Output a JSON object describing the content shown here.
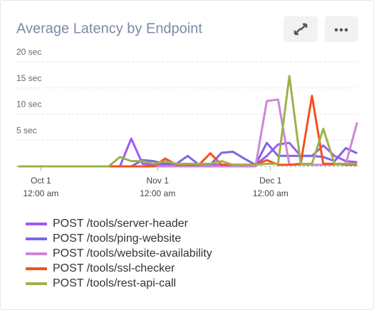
{
  "chart_data": {
    "type": "line",
    "title": "Average Latency by Endpoint",
    "x": [
      -6,
      -3,
      0,
      3,
      6,
      9,
      12,
      15,
      18,
      21,
      24,
      27,
      30,
      33,
      36,
      39,
      42,
      45,
      48,
      51,
      54,
      57,
      60,
      63,
      66,
      69,
      72,
      75,
      78,
      81,
      84
    ],
    "xlim": [
      -6.5,
      84.5
    ],
    "xticks": [
      {
        "value": 0,
        "label": [
          "Oct 1",
          "12:00 am"
        ]
      },
      {
        "value": 31,
        "label": [
          "Nov 1",
          "12:00 am"
        ]
      },
      {
        "value": 61,
        "label": [
          "Dec 1",
          "12:00 am"
        ]
      }
    ],
    "ylim": [
      0,
      20
    ],
    "yticks": [
      {
        "value": 5,
        "label": "5 sec"
      },
      {
        "value": 10,
        "label": "10 sec"
      },
      {
        "value": 15,
        "label": "15 sec"
      },
      {
        "value": 20,
        "label": "20 sec"
      }
    ],
    "grid": true,
    "series": [
      {
        "name": "POST /tools/server-header",
        "color": "#a259f0",
        "values": [
          0,
          0,
          0,
          0,
          0,
          0,
          0,
          0,
          0,
          0,
          5.3,
          0.5,
          0.3,
          0.3,
          0.3,
          0.3,
          0.3,
          0.3,
          0.3,
          0.3,
          0.3,
          0.3,
          2,
          4.2,
          4.5,
          2,
          2,
          4,
          2,
          1,
          0.8
        ]
      },
      {
        "name": "POST /tools/ping-website",
        "color": "#7c66e8",
        "values": [
          0,
          0,
          0,
          0,
          0,
          0,
          0,
          0,
          0,
          0,
          0,
          1.2,
          1,
          0.5,
          0.5,
          2,
          0.3,
          0.3,
          2.6,
          2.8,
          1.5,
          0.3,
          4.5,
          2,
          2,
          2,
          2,
          1.8,
          1,
          3.5,
          2.5
        ]
      },
      {
        "name": "POST /tools/website-availability",
        "color": "#cf86d9",
        "values": [
          0,
          0,
          0,
          0,
          0,
          0,
          0,
          0,
          0,
          0,
          0,
          0,
          0,
          0,
          0,
          0,
          0,
          0,
          0,
          0,
          0,
          0,
          12.5,
          12.8,
          0.3,
          0.3,
          0.3,
          0.3,
          0.3,
          0.5,
          8.4
        ]
      },
      {
        "name": "POST /tools/ssl-checker",
        "color": "#f4511e",
        "values": [
          0,
          0,
          0,
          0,
          0,
          0,
          0,
          0,
          0,
          0,
          0,
          0,
          0,
          1.5,
          0.3,
          0.3,
          0.3,
          2.5,
          0.3,
          0.3,
          0.3,
          0.3,
          1.2,
          0.3,
          0.3,
          0.5,
          13.5,
          0.5,
          0.5,
          0.3,
          0.3
        ]
      },
      {
        "name": "POST /tools/rest-api-call",
        "color": "#9cb24a",
        "values": [
          0,
          0,
          0,
          0,
          0,
          0,
          0,
          0,
          0,
          1.8,
          1,
          1,
          0.5,
          1,
          0.5,
          0.5,
          0.5,
          0.5,
          1,
          0.3,
          0.3,
          0.3,
          0.5,
          0.5,
          17.3,
          0.5,
          0.5,
          7.2,
          0.5,
          0.5,
          0.5
        ]
      }
    ]
  }
}
